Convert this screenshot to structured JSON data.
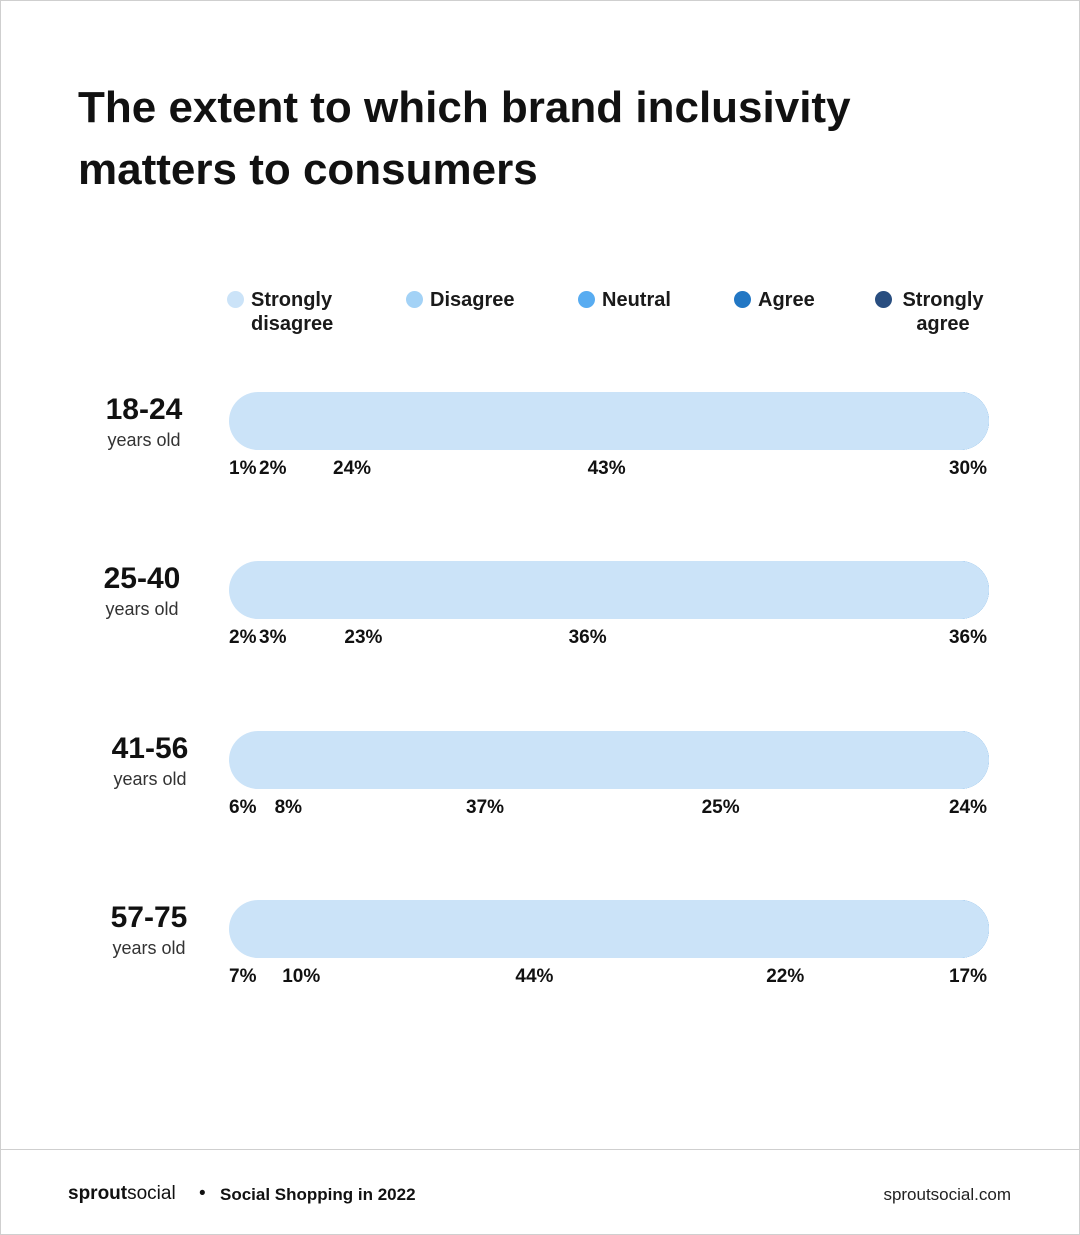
{
  "header": {
    "title": "The extent to which brand inclusivity matters to consumers"
  },
  "chart_data": {
    "type": "bar",
    "stacked": true,
    "orientation": "horizontal",
    "title": "The extent to which brand inclusivity matters to consumers",
    "legend_placement": "top",
    "grid": false,
    "categories": [
      {
        "name": "18-24",
        "sub": "years old"
      },
      {
        "name": "25-40",
        "sub": "years old"
      },
      {
        "name": "41-56",
        "sub": "years old"
      },
      {
        "name": "57-75",
        "sub": "years old"
      }
    ],
    "series": [
      {
        "name": "Strongly disagree",
        "color": "#cbe3f8",
        "values": [
          1,
          2,
          6,
          7
        ]
      },
      {
        "name": "Disagree",
        "color": "#a3d2f6",
        "values": [
          2,
          3,
          8,
          10
        ]
      },
      {
        "name": "Neutral",
        "color": "#58acf1",
        "values": [
          24,
          23,
          37,
          44
        ]
      },
      {
        "name": "Agree",
        "color": "#2277c4",
        "values": [
          43,
          36,
          25,
          22
        ]
      },
      {
        "name": "Strongly agree",
        "color": "#294e80",
        "values": [
          30,
          36,
          24,
          17
        ]
      }
    ],
    "value_labels": [
      [
        "1%",
        "2%",
        "24%",
        "43%",
        "30%"
      ],
      [
        "2%",
        "3%",
        "23%",
        "36%",
        "36%"
      ],
      [
        "6%",
        "8%",
        "37%",
        "25%",
        "24%"
      ],
      [
        "7%",
        "10%",
        "44%",
        "22%",
        "17%"
      ]
    ]
  },
  "footer": {
    "brand_bold": "sprout",
    "brand_light": "social",
    "separator": "•",
    "report": "Social Shopping in 2022",
    "site": "sproutsocial.com"
  }
}
